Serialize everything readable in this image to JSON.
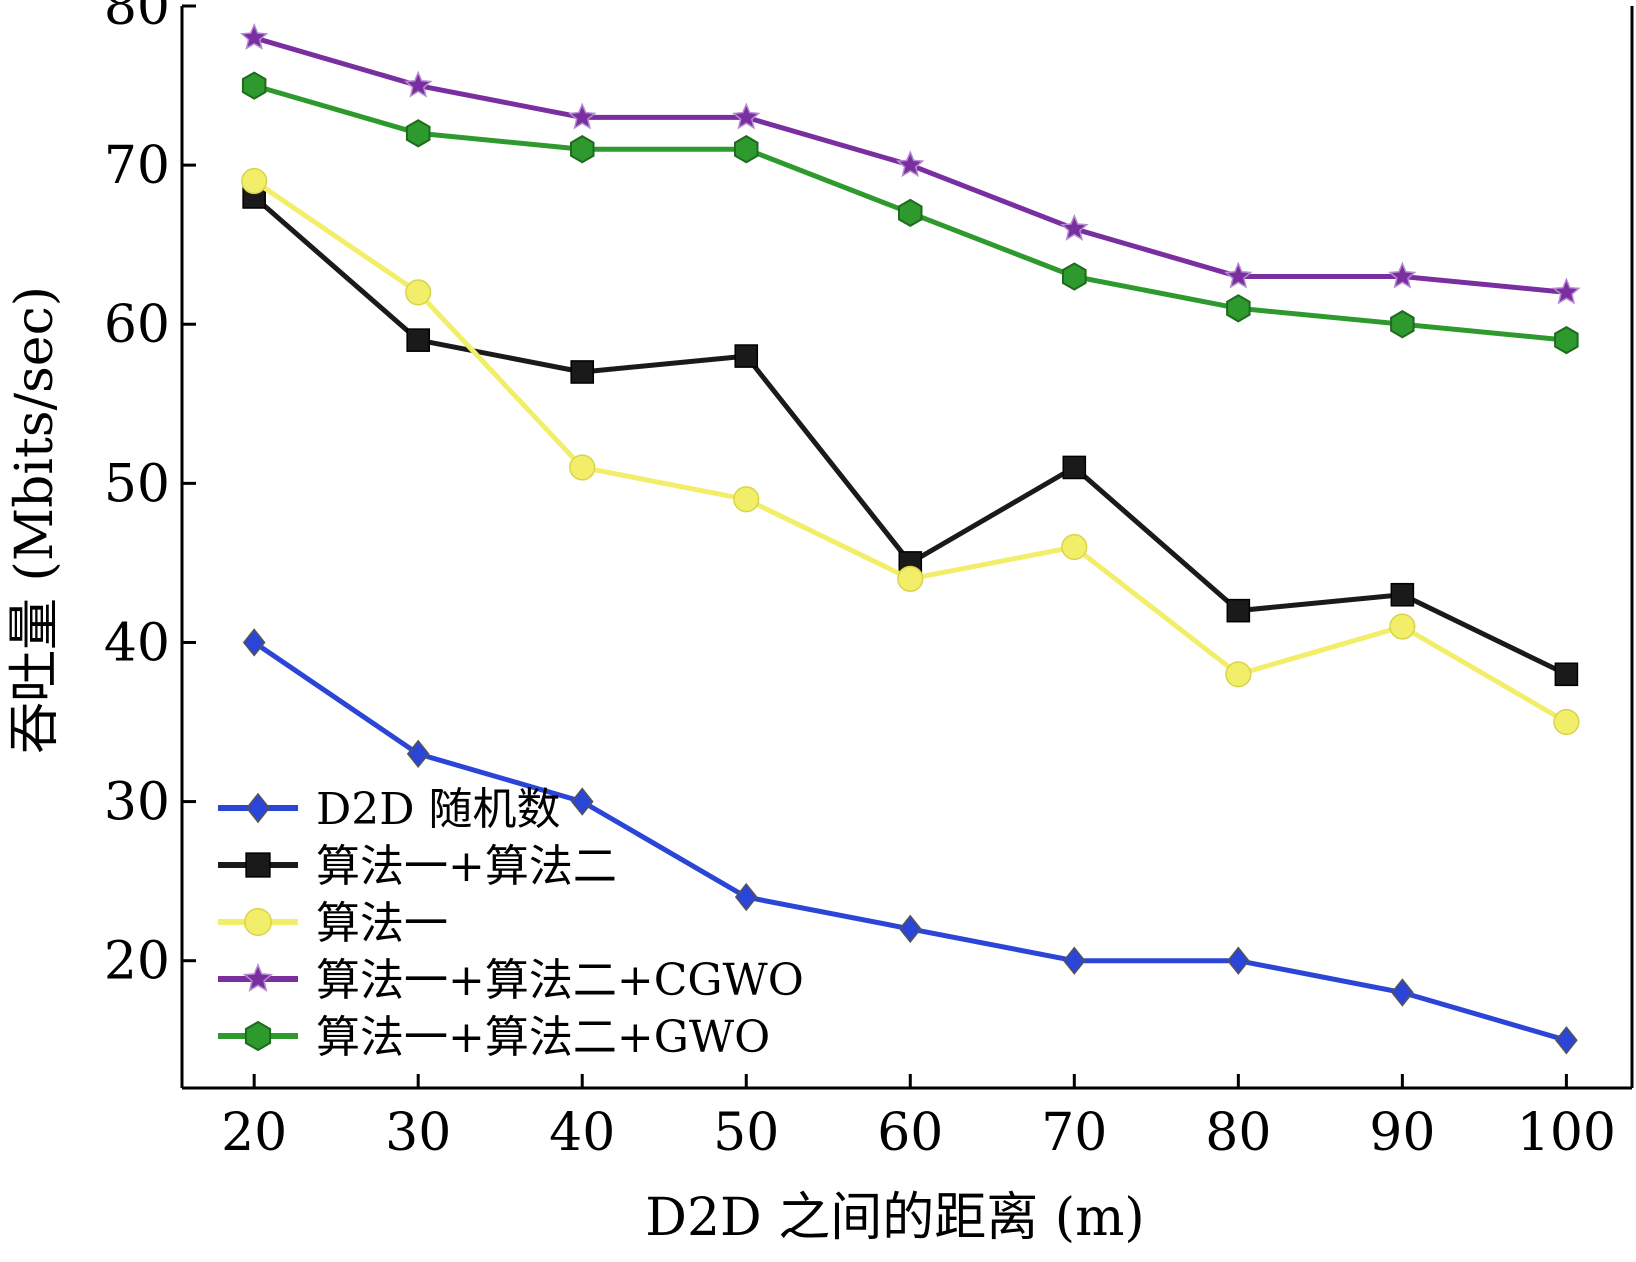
{
  "chart_data": {
    "type": "line",
    "title": "",
    "xlabel": "D2D 之间的距离 (m)",
    "ylabel": "吞吐量 (Mbits/sec)",
    "x": [
      20,
      30,
      40,
      50,
      60,
      70,
      80,
      90,
      100
    ],
    "xlim": [
      15.6,
      104
    ],
    "ylim": [
      12,
      80
    ],
    "xticks": [
      20,
      30,
      40,
      50,
      60,
      70,
      80,
      90,
      100
    ],
    "yticks": [
      20,
      30,
      40,
      50,
      60,
      70,
      80
    ],
    "grid": false,
    "legend_position": "bottom-left",
    "series": [
      {
        "name": "D2D 随机数",
        "color": "#2b45d6",
        "marker": "diamond",
        "values": [
          40,
          33,
          30,
          24,
          22,
          20,
          20,
          18,
          15
        ]
      },
      {
        "name": "算法一+算法二",
        "color": "#1a1a1a",
        "marker": "square",
        "values": [
          68,
          59,
          57,
          58,
          45,
          51,
          42,
          43,
          38
        ]
      },
      {
        "name": "算法一",
        "color": "#f2ee6a",
        "marker": "circle",
        "values": [
          69,
          62,
          51,
          49,
          44,
          46,
          38,
          41,
          35
        ]
      },
      {
        "name": "算法一+算法二+CGWO",
        "color": "#7a2fa0",
        "marker": "star",
        "values": [
          78,
          75,
          73,
          73,
          70,
          66,
          63,
          63,
          62
        ]
      },
      {
        "name": "算法一+算法二+GWO",
        "color": "#2e9a2e",
        "marker": "hexagon",
        "values": [
          75,
          72,
          71,
          71,
          67,
          63,
          61,
          60,
          59
        ]
      }
    ]
  }
}
